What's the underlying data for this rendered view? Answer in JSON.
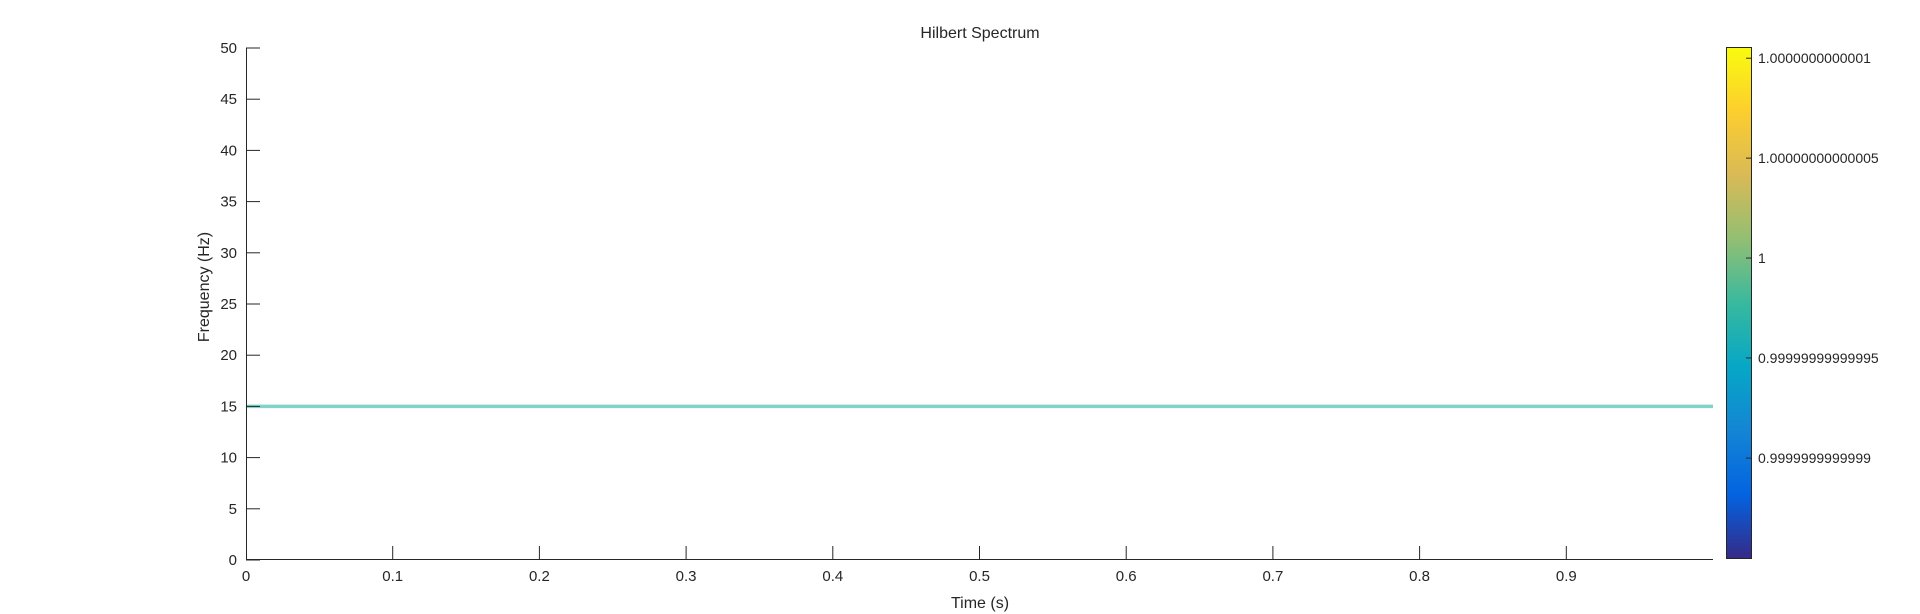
{
  "chart_data": {
    "type": "heatmap",
    "title": "Hilbert Spectrum",
    "xlabel": "Time (s)",
    "ylabel": "Frequency (Hz)",
    "xlim": [
      0,
      1
    ],
    "ylim": [
      0,
      50
    ],
    "x_ticks": [
      0,
      0.1,
      0.2,
      0.3,
      0.4,
      0.5,
      0.6,
      0.7,
      0.8,
      0.9
    ],
    "x_tick_labels": [
      "0",
      "0.1",
      "0.2",
      "0.3",
      "0.4",
      "0.5",
      "0.6",
      "0.7",
      "0.8",
      "0.9"
    ],
    "y_ticks": [
      0,
      5,
      10,
      15,
      20,
      25,
      30,
      35,
      40,
      45,
      50
    ],
    "y_tick_labels": [
      "0",
      "5",
      "10",
      "15",
      "20",
      "25",
      "30",
      "35",
      "40",
      "45",
      "50"
    ],
    "series": [
      {
        "x": [
          0,
          1
        ],
        "y": [
          15,
          15
        ],
        "value": 1,
        "color": "#7fd3c8"
      }
    ],
    "colorbar": {
      "colormap": "parula",
      "range": [
        0.99999999999985,
        1.000000000000105
      ],
      "ticks": [
        0.9999999999999,
        0.99999999999995,
        1,
        1.00000000000005,
        1.0000000000001
      ],
      "tick_labels": [
        "0.9999999999999",
        "0.99999999999995",
        "1",
        "1.00000000000005",
        "1.0000000000001"
      ]
    },
    "grid": false,
    "background": "#ffffff",
    "axis_color": "#262626"
  }
}
